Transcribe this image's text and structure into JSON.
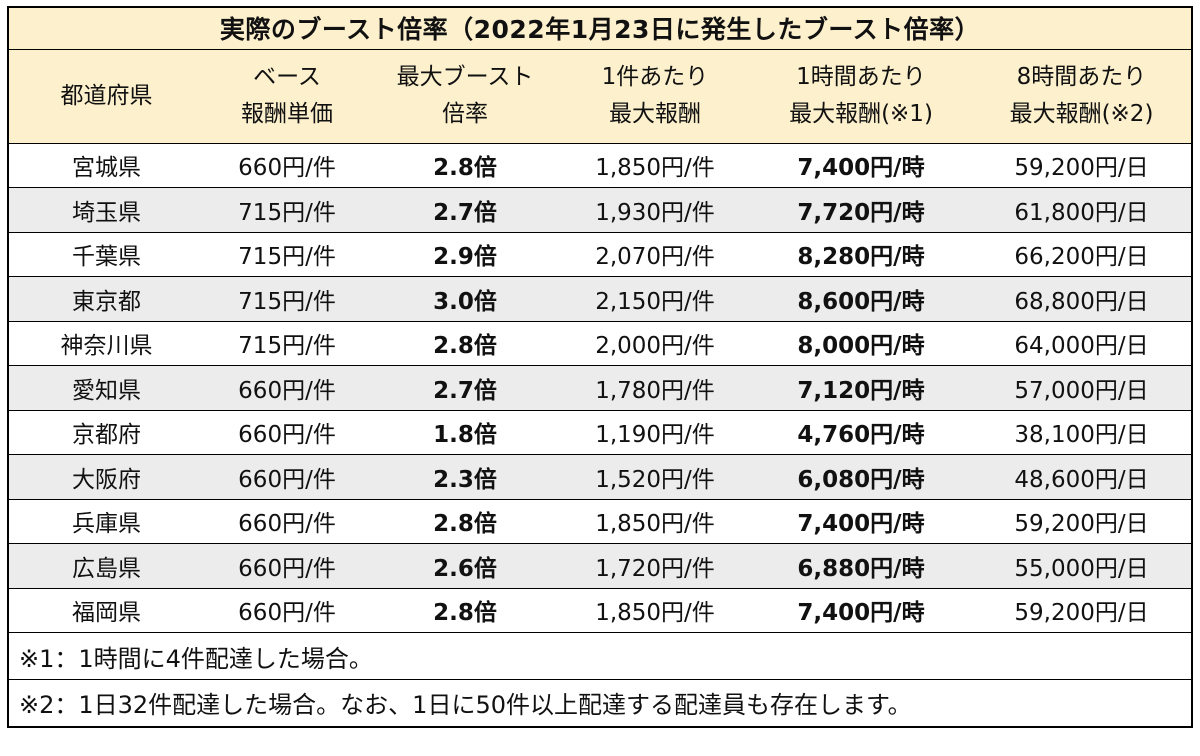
{
  "chart_data": {
    "type": "table",
    "title": "実際のブースト倍率（2022年1月23日に発生したブースト倍率）",
    "header": [
      {
        "line1": "都道府県",
        "line2": ""
      },
      {
        "line1": "ベース",
        "line2": "報酬単価"
      },
      {
        "line1": "最大ブースト",
        "line2": "倍率"
      },
      {
        "line1": "1件あたり",
        "line2": "最大報酬"
      },
      {
        "line1": "1時間あたり",
        "line2": "最大報酬(※1)"
      },
      {
        "line1": "8時間あたり",
        "line2": "最大報酬(※2)"
      }
    ],
    "rows": [
      [
        "宮城県",
        "660円/件",
        "2.8倍",
        "1,850円/件",
        "7,400円/時",
        "59,200円/日"
      ],
      [
        "埼玉県",
        "715円/件",
        "2.7倍",
        "1,930円/件",
        "7,720円/時",
        "61,800円/日"
      ],
      [
        "千葉県",
        "715円/件",
        "2.9倍",
        "2,070円/件",
        "8,280円/時",
        "66,200円/日"
      ],
      [
        "東京都",
        "715円/件",
        "3.0倍",
        "2,150円/件",
        "8,600円/時",
        "68,800円/日"
      ],
      [
        "神奈川県",
        "715円/件",
        "2.8倍",
        "2,000円/件",
        "8,000円/時",
        "64,000円/日"
      ],
      [
        "愛知県",
        "660円/件",
        "2.7倍",
        "1,780円/件",
        "7,120円/時",
        "57,000円/日"
      ],
      [
        "京都府",
        "660円/件",
        "1.8倍",
        "1,190円/件",
        "4,760円/時",
        "38,100円/日"
      ],
      [
        "大阪府",
        "660円/件",
        "2.3倍",
        "1,520円/件",
        "6,080円/時",
        "48,600円/日"
      ],
      [
        "兵庫県",
        "660円/件",
        "2.8倍",
        "1,850円/件",
        "7,400円/時",
        "59,200円/日"
      ],
      [
        "広島県",
        "660円/件",
        "2.6倍",
        "1,720円/件",
        "6,880円/時",
        "55,000円/日"
      ],
      [
        "福岡県",
        "660円/件",
        "2.8倍",
        "1,850円/件",
        "7,400円/時",
        "59,200円/日"
      ]
    ],
    "footnotes": [
      "※1：1時間に4件配達した場合。",
      "※2：1日32件配達した場合。なお、1日に50件以上配達する配達員も存在します。"
    ]
  },
  "style": {
    "header_bg": "#fcf0cd",
    "alt_row_bg": "#ececec",
    "border_color": "#000000"
  }
}
